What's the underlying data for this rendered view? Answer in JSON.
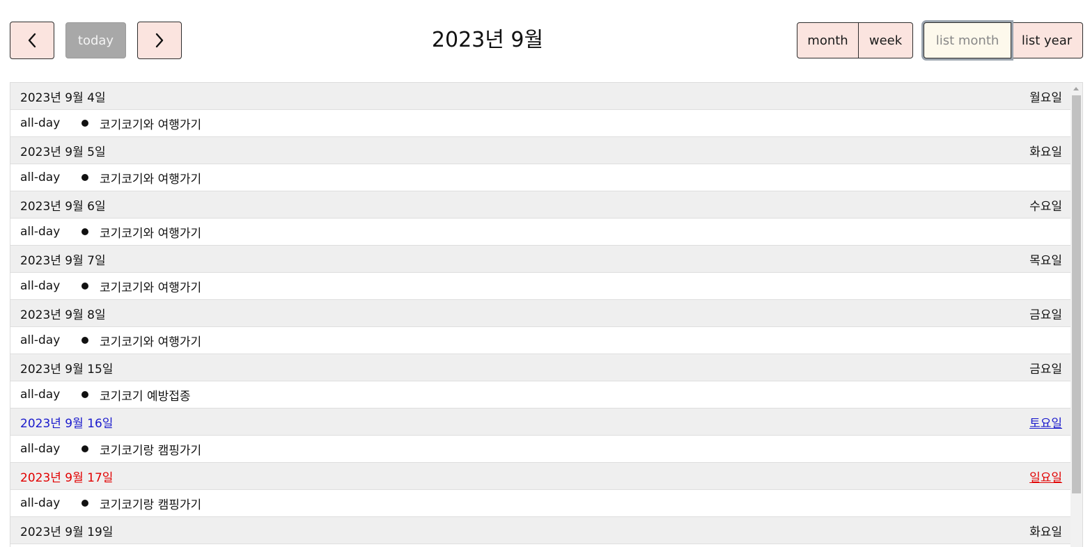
{
  "toolbar": {
    "prev_icon": "chevron-left-icon",
    "today_label": "today",
    "next_icon": "chevron-right-icon",
    "title": "2023년 9월",
    "views": {
      "month": "month",
      "week": "week",
      "list_month": "list month",
      "list_year": "list year"
    },
    "active_view": "list month"
  },
  "colors": {
    "button_bg": "#fbe4df",
    "today_disabled_bg": "#a8a8a8",
    "active_view_bg": "#fdf9ec",
    "day_header_bg": "#efefef",
    "saturday": "#1a1acc",
    "sunday": "#e10000"
  },
  "list": {
    "days": [
      {
        "date": "2023년 9월 4일",
        "weekday": "월요일",
        "kind": "weekday",
        "event_time": "all-day",
        "event_title": "코기코기와 여행가기"
      },
      {
        "date": "2023년 9월 5일",
        "weekday": "화요일",
        "kind": "weekday",
        "event_time": "all-day",
        "event_title": "코기코기와 여행가기"
      },
      {
        "date": "2023년 9월 6일",
        "weekday": "수요일",
        "kind": "weekday",
        "event_time": "all-day",
        "event_title": "코기코기와 여행가기"
      },
      {
        "date": "2023년 9월 7일",
        "weekday": "목요일",
        "kind": "weekday",
        "event_time": "all-day",
        "event_title": "코기코기와 여행가기"
      },
      {
        "date": "2023년 9월 8일",
        "weekday": "금요일",
        "kind": "weekday",
        "event_time": "all-day",
        "event_title": "코기코기와 여행가기"
      },
      {
        "date": "2023년 9월 15일",
        "weekday": "금요일",
        "kind": "weekday",
        "event_time": "all-day",
        "event_title": "코기코기 예방접종"
      },
      {
        "date": "2023년 9월 16일",
        "weekday": "토요일",
        "kind": "saturday",
        "event_time": "all-day",
        "event_title": "코기코기랑 캠핑가기"
      },
      {
        "date": "2023년 9월 17일",
        "weekday": "일요일",
        "kind": "sunday",
        "event_time": "all-day",
        "event_title": "코기코기랑 캠핑가기"
      },
      {
        "date": "2023년 9월 19일",
        "weekday": "화요일",
        "kind": "weekday",
        "event_time": "",
        "event_title": ""
      }
    ]
  }
}
